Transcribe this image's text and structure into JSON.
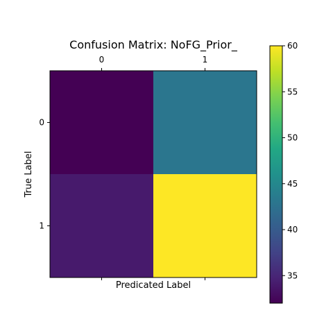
{
  "chart_data": {
    "type": "heatmap",
    "title": "Confusion Matrix: NoFG_Prior_",
    "xlabel": "Predicated Label",
    "ylabel": "True Label",
    "x_categories": [
      "0",
      "1"
    ],
    "y_categories": [
      "0",
      "1"
    ],
    "matrix": [
      [
        32,
        43
      ],
      [
        34,
        60
      ]
    ],
    "colormap": "viridis",
    "colorbar": {
      "range": [
        32,
        60
      ],
      "ticks": [
        35,
        40,
        45,
        50,
        55,
        60
      ]
    },
    "grid": false,
    "x_ticks_position": "top"
  }
}
